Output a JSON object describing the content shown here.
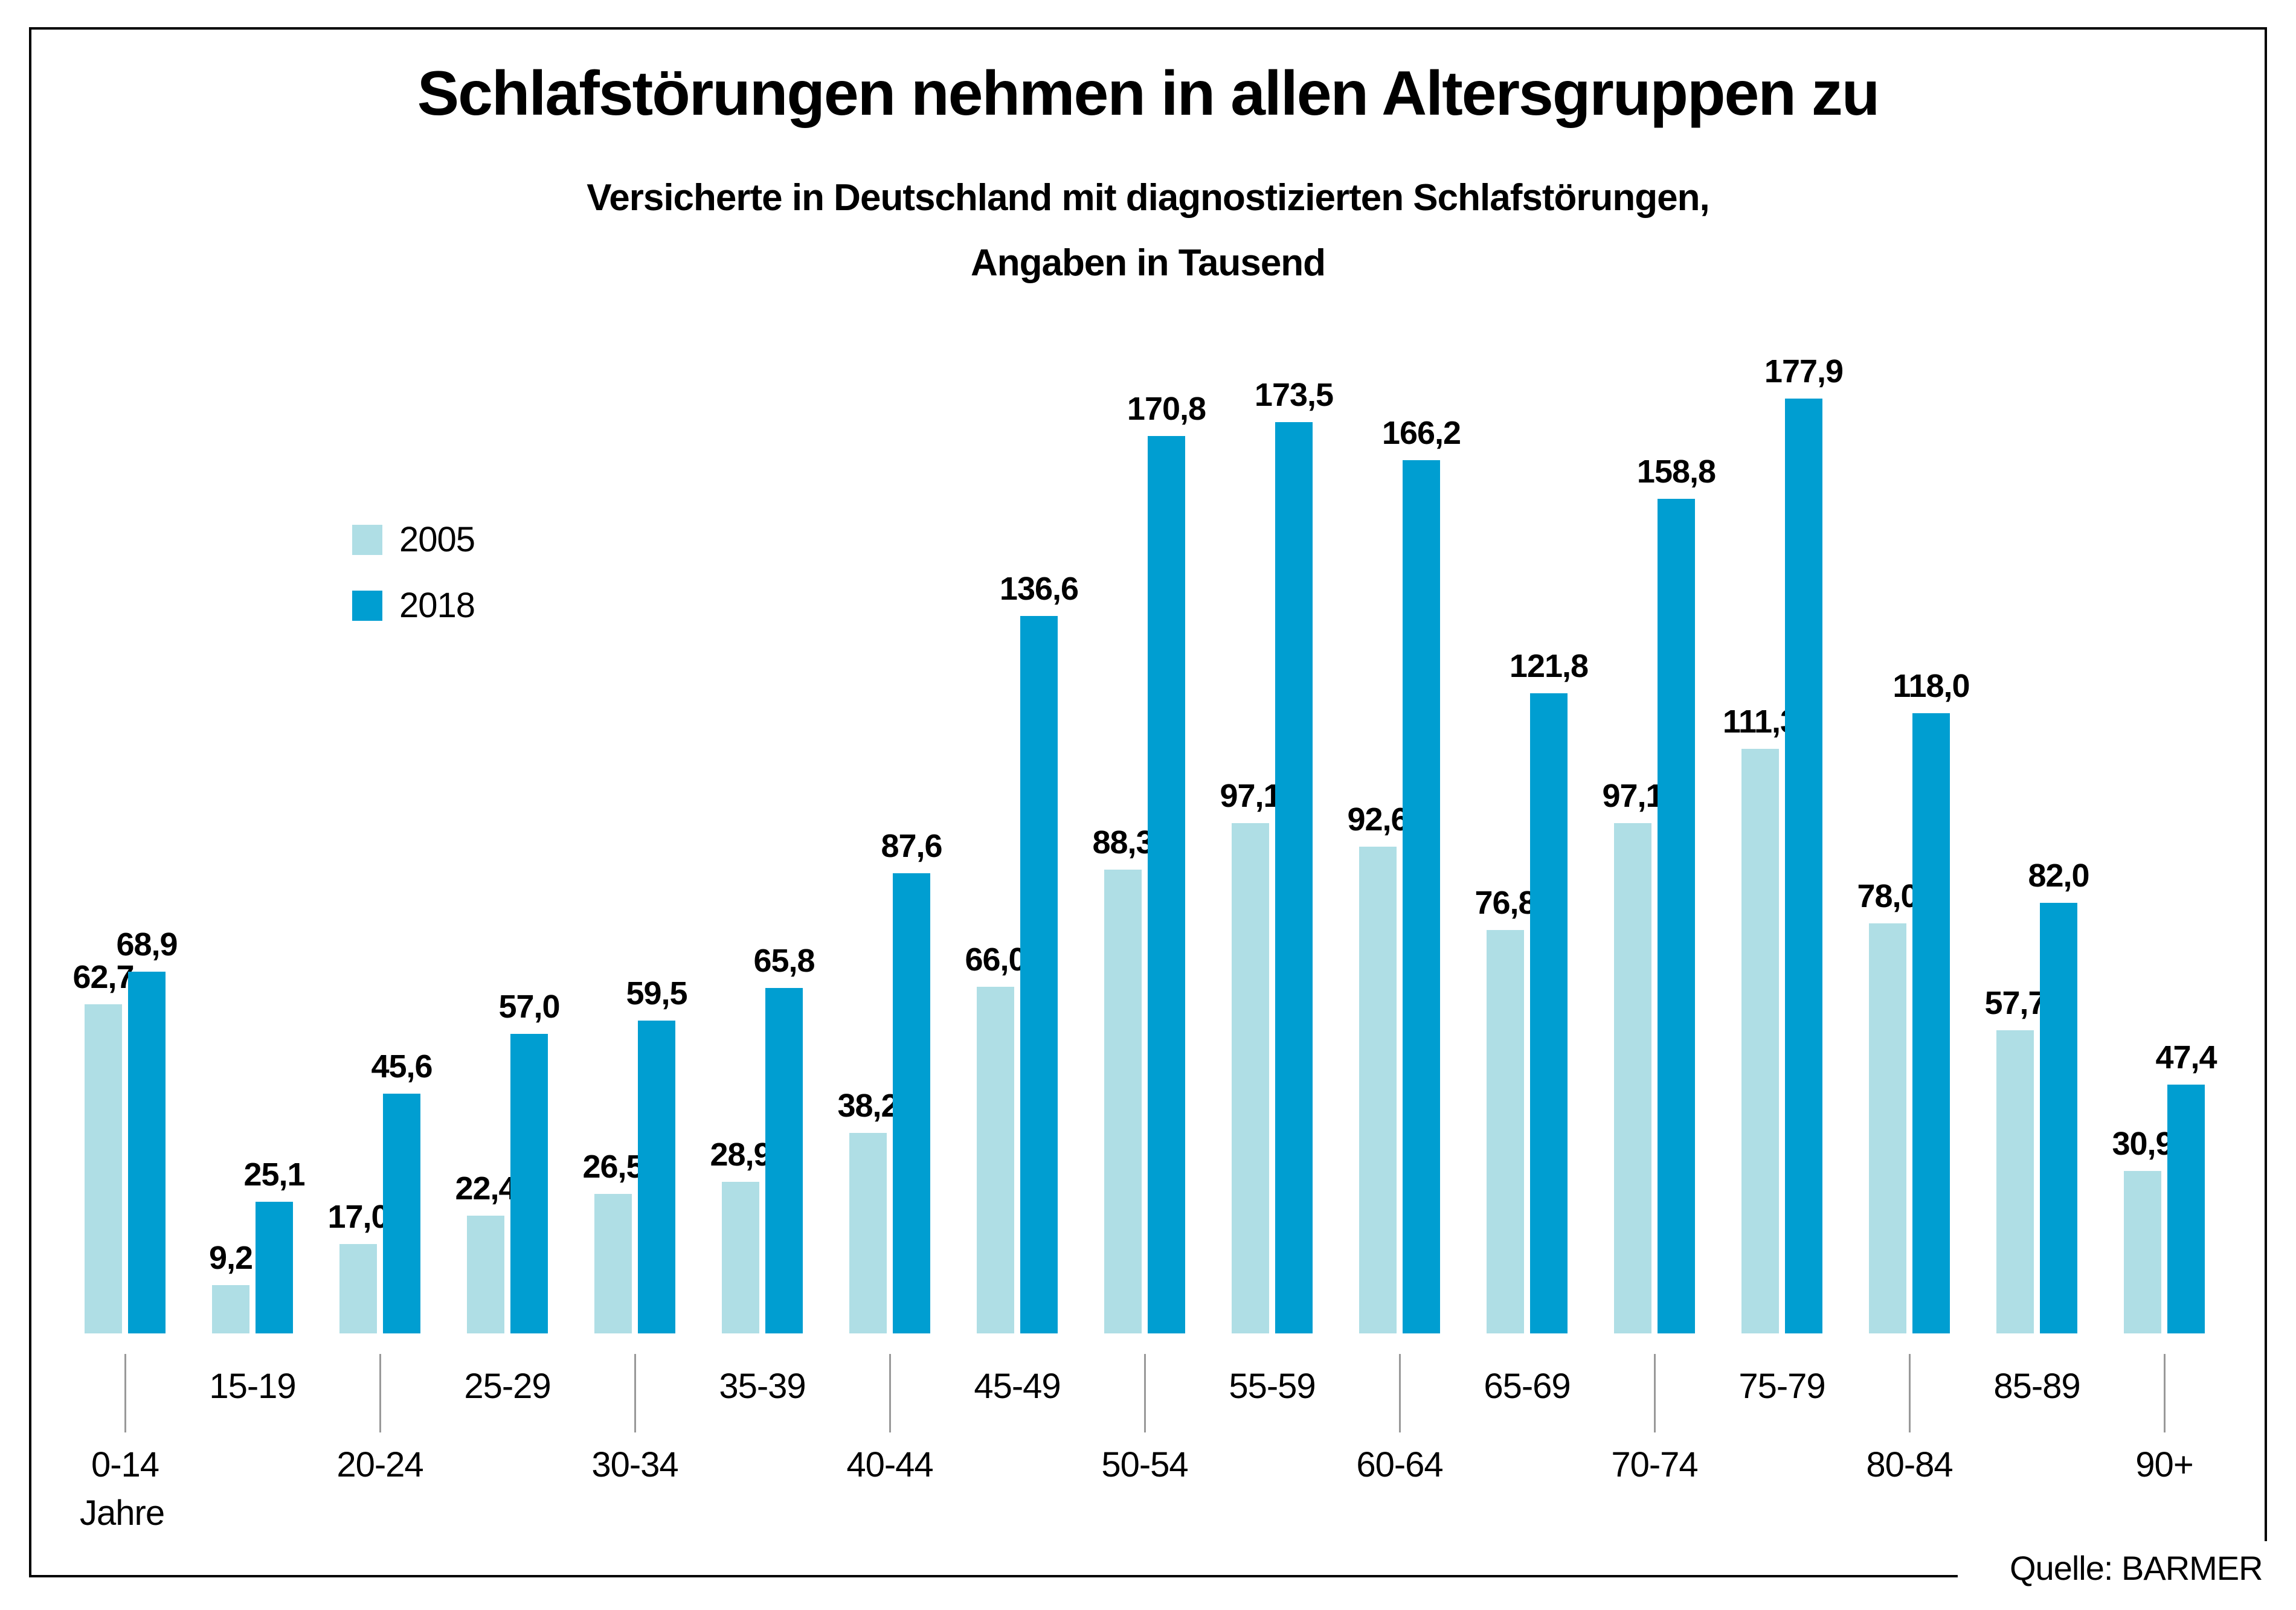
{
  "header": {
    "title": "Schlafstörungen nehmen in allen Altersgruppen zu",
    "subtitle_line1": "Versicherte in Deutschland mit diagnostizierten Schlafstörungen,",
    "subtitle_line2": "Angaben in Tausend"
  },
  "footer": {
    "source": "Quelle: BARMER"
  },
  "chart_data": {
    "type": "bar",
    "title": "Schlafstörungen nehmen in allen Altersgruppen zu",
    "subtitle": "Versicherte in Deutschland mit diagnostizierten Schlafstörungen, Angaben in Tausend",
    "unit": "Tausend",
    "x_unit_label": "Jahre",
    "categories": [
      "0-14",
      "15-19",
      "20-24",
      "25-29",
      "30-34",
      "35-39",
      "40-44",
      "45-49",
      "50-54",
      "55-59",
      "60-64",
      "65-69",
      "70-74",
      "75-79",
      "80-84",
      "85-89",
      "90+"
    ],
    "series": [
      {
        "name": "2005",
        "color": "#AFDEE5",
        "values": [
          62.7,
          9.2,
          17.0,
          22.4,
          26.5,
          28.9,
          38.2,
          66.0,
          88.3,
          97.1,
          92.6,
          76.8,
          97.1,
          111.3,
          78.0,
          57.7,
          30.9
        ]
      },
      {
        "name": "2018",
        "color": "#009ED1",
        "values": [
          68.9,
          25.1,
          45.6,
          57.0,
          59.5,
          65.8,
          87.6,
          136.6,
          170.8,
          173.5,
          166.2,
          121.8,
          158.8,
          177.9,
          118.0,
          82.0,
          47.4
        ]
      }
    ],
    "ylim": [
      0,
      185
    ],
    "grid": false,
    "value_labels": true,
    "decimal_separator": ",",
    "legend_position": "upper-left",
    "tick_color": "#999999"
  }
}
